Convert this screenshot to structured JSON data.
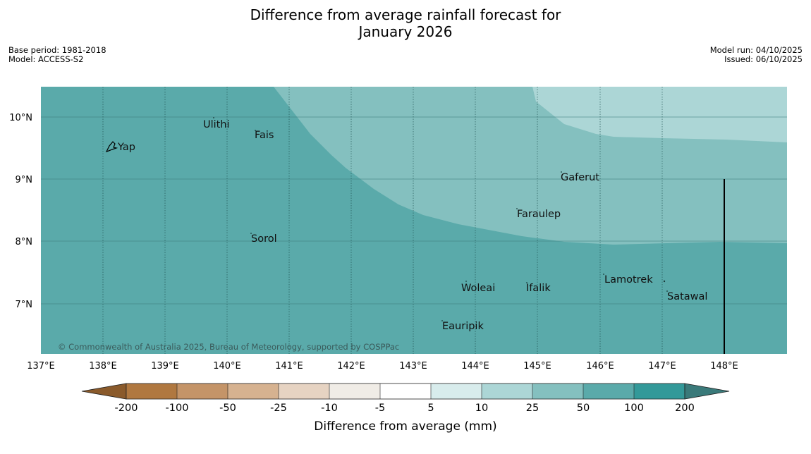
{
  "title": {
    "line1": "Difference from average rainfall forecast for",
    "line2": "January 2026"
  },
  "meta_left": {
    "base_period": "Base period: 1981-2018",
    "model": "Model: ACCESS-S2"
  },
  "meta_right": {
    "model_run": "Model run: 04/10/2025",
    "issued": "Issued: 06/10/2025"
  },
  "lon_ticks": [
    "137°E",
    "138°E",
    "139°E",
    "140°E",
    "141°E",
    "142°E",
    "143°E",
    "144°E",
    "145°E",
    "146°E",
    "147°E",
    "148°E"
  ],
  "lat_ticks": [
    "10°N",
    "9°N",
    "8°N",
    "7°N"
  ],
  "places": {
    "yap": "Yap",
    "ulithi": "Ulithi",
    "fais": "Fais",
    "gaferut": "Gaferut",
    "faraulep": "Faraulep",
    "sorol": "Sorol",
    "lamotrek": "Lamotrek",
    "woleai": "Woleai",
    "ifalik": "Ifalik",
    "satawal": "Satawal",
    "eauripik": "Eauripik"
  },
  "copyright": "© Commonwealth of Australia 2025, Bureau of Meteorology, supported by COSPPac",
  "colorbar": {
    "title": "Difference from average (mm)",
    "labels": [
      "-200",
      "-100",
      "-50",
      "-25",
      "-10",
      "-5",
      "5",
      "10",
      "25",
      "50",
      "100",
      "200"
    ],
    "colors": [
      "#8a5a2b",
      "#b07840",
      "#c49468",
      "#d6b290",
      "#e6d3c2",
      "#f0ece6",
      "#ffffff",
      "#d8ecec",
      "#acd6d6",
      "#84c0bf",
      "#5aaaaa",
      "#339999",
      "#3a7a7a"
    ]
  },
  "map_colors": {
    "band_50_100": "#5aaaaa",
    "band_25_50": "#84c0bf",
    "band_10_25": "#acd6d6"
  }
}
